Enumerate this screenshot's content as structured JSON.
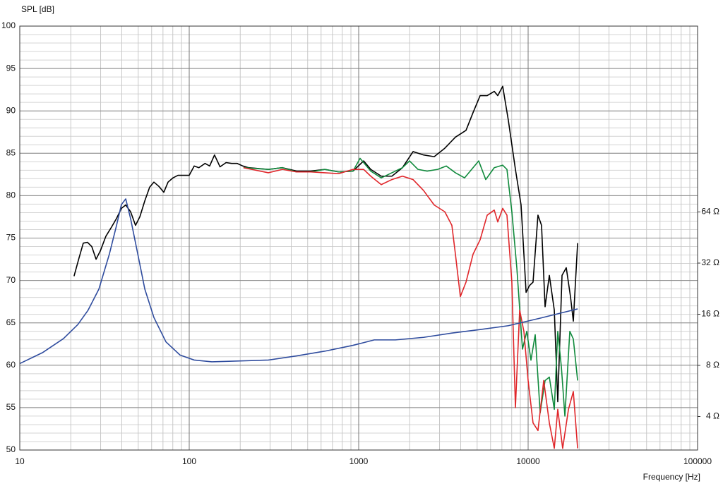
{
  "chart_data": {
    "type": "line",
    "y_label": "SPL [dB]",
    "x_label": "Frequency [Hz]",
    "x_log": true,
    "y2_log": true,
    "grid": true,
    "minor_grid": true,
    "xlim": [
      10,
      100000
    ],
    "xticks": [
      10,
      100,
      1000,
      10000,
      100000
    ],
    "ylim": [
      50,
      100
    ],
    "yticks": [
      50,
      55,
      60,
      65,
      70,
      75,
      80,
      85,
      90,
      95,
      100
    ],
    "y2lim": [
      2.54,
      795
    ],
    "y2ticks": [
      {
        "value": 4,
        "label": "4 Ω"
      },
      {
        "value": 8,
        "label": "8 Ω"
      },
      {
        "value": 16,
        "label": "16 Ω"
      },
      {
        "value": 32,
        "label": "32 Ω"
      },
      {
        "value": 64,
        "label": "64 Ω"
      }
    ],
    "series": [
      {
        "color": "#000000",
        "x": [
          20.9,
          22.4,
          23.7,
          25.1,
          26.6,
          28.2,
          29.9,
          32.2,
          34.8,
          37.2,
          39.8,
          42.2,
          45.1,
          48.2,
          51.1,
          54.7,
          58.4,
          61.9,
          66.2,
          70.8,
          75,
          80.2,
          85.8,
          92.6,
          100,
          107,
          114,
          124,
          132,
          141,
          152,
          165,
          178,
          192,
          207,
          224,
          293,
          355,
          430,
          521,
          631,
          764,
          926,
          1070,
          1178,
          1359,
          1570,
          1813,
          2094,
          2417,
          2791,
          3224,
          3723,
          4299,
          4732,
          5209,
          5733,
          6310,
          6620,
          7079,
          7640,
          8414,
          9085,
          9727,
          10190,
          10690,
          11430,
          12000,
          12590,
          13340,
          14270,
          14960,
          15850,
          16790,
          17780,
          18480,
          19590
        ],
        "values": [
          70.5,
          72.7,
          74.4,
          74.5,
          74.0,
          72.5,
          73.5,
          75.2,
          76.3,
          77.3,
          78.5,
          78.9,
          78.1,
          76.5,
          77.5,
          79.4,
          81.0,
          81.6,
          81.1,
          80.4,
          81.6,
          82.1,
          82.4,
          82.4,
          82.4,
          83.5,
          83.3,
          83.8,
          83.5,
          84.8,
          83.4,
          83.9,
          83.8,
          83.8,
          83.5,
          83.3,
          83.1,
          83.3,
          82.9,
          82.9,
          83.1,
          82.8,
          82.9,
          84.1,
          83.1,
          82.3,
          82.3,
          83.3,
          85.2,
          84.8,
          84.6,
          85.6,
          86.9,
          87.7,
          89.8,
          91.8,
          91.8,
          92.3,
          91.8,
          92.9,
          88.9,
          83.1,
          78.9,
          68.6,
          69.4,
          69.8,
          77.7,
          76.5,
          66.9,
          70.6,
          66.5,
          55.7,
          70.6,
          71.5,
          68.1,
          65.2,
          74.4
        ]
      },
      {
        "color": "#108a3c",
        "x": [
          209,
          293,
          355,
          430,
          521,
          631,
          764,
          926,
          1019,
          1178,
          1359,
          1570,
          1813,
          1995,
          2239,
          2535,
          2929,
          3286,
          3723,
          4217,
          4642,
          5109,
          5623,
          6310,
          7079,
          7499,
          8017,
          8576,
          9261,
          9817,
          10390,
          11010,
          11780,
          12590,
          13340,
          14270,
          14960,
          15710,
          16480,
          17620,
          18480,
          19590
        ],
        "values": [
          83.3,
          83.1,
          83.3,
          82.8,
          82.8,
          83.1,
          82.8,
          82.9,
          84.4,
          82.9,
          82.1,
          82.7,
          83.3,
          84.1,
          83.1,
          82.9,
          83.1,
          83.5,
          82.7,
          82.1,
          83.1,
          84.1,
          81.9,
          83.3,
          83.6,
          83.1,
          78.1,
          71.5,
          61.9,
          64.0,
          60.6,
          63.6,
          54.4,
          58.2,
          58.6,
          54.8,
          64.0,
          59.8,
          54.0,
          64.0,
          63.1,
          58.2
        ]
      },
      {
        "color": "#e0262a",
        "x": [
          209,
          293,
          355,
          430,
          521,
          631,
          764,
          926,
          1070,
          1178,
          1359,
          1570,
          1813,
          2094,
          2417,
          2791,
          3224,
          3548,
          3723,
          3981,
          4299,
          4732,
          5209,
          5733,
          6310,
          6620,
          7079,
          7499,
          8017,
          8414,
          8913,
          9441,
          10000,
          10690,
          11430,
          12360,
          13340,
          14270,
          14960,
          15990,
          17300,
          18480,
          19590
        ],
        "values": [
          83.3,
          82.7,
          83.1,
          82.8,
          82.8,
          82.7,
          82.6,
          83.1,
          83.1,
          82.3,
          81.3,
          81.9,
          82.3,
          81.9,
          80.6,
          78.9,
          78.1,
          76.5,
          73.1,
          68.1,
          69.8,
          73.1,
          74.8,
          77.7,
          78.3,
          76.9,
          78.5,
          77.7,
          69.8,
          55.0,
          66.5,
          64.0,
          58.2,
          53.2,
          52.3,
          58.2,
          53.2,
          50.2,
          54.8,
          50.2,
          54.8,
          56.9,
          50.2
        ]
      },
      {
        "color": "#2f4c9e",
        "axis": "y2",
        "x": [
          10,
          13.6,
          18.1,
          22,
          25.3,
          29.3,
          33.8,
          37.2,
          39.8,
          42.2,
          45.1,
          49.7,
          54.7,
          61.9,
          72.9,
          88.3,
          107,
          136,
          200,
          293,
          430,
          631,
          926,
          1236,
          1648,
          2417,
          3548,
          5209,
          7640,
          11220,
          14960,
          19590
        ],
        "values": [
          8.2,
          9.5,
          11.5,
          13.9,
          16.9,
          22.5,
          36.2,
          53.1,
          70.8,
          76.4,
          58.4,
          36.2,
          22.5,
          15.3,
          11.0,
          9.2,
          8.6,
          8.4,
          8.5,
          8.6,
          9.1,
          9.7,
          10.5,
          11.3,
          11.3,
          11.7,
          12.4,
          13.0,
          13.7,
          15.0,
          16.1,
          17.2
        ]
      }
    ]
  }
}
